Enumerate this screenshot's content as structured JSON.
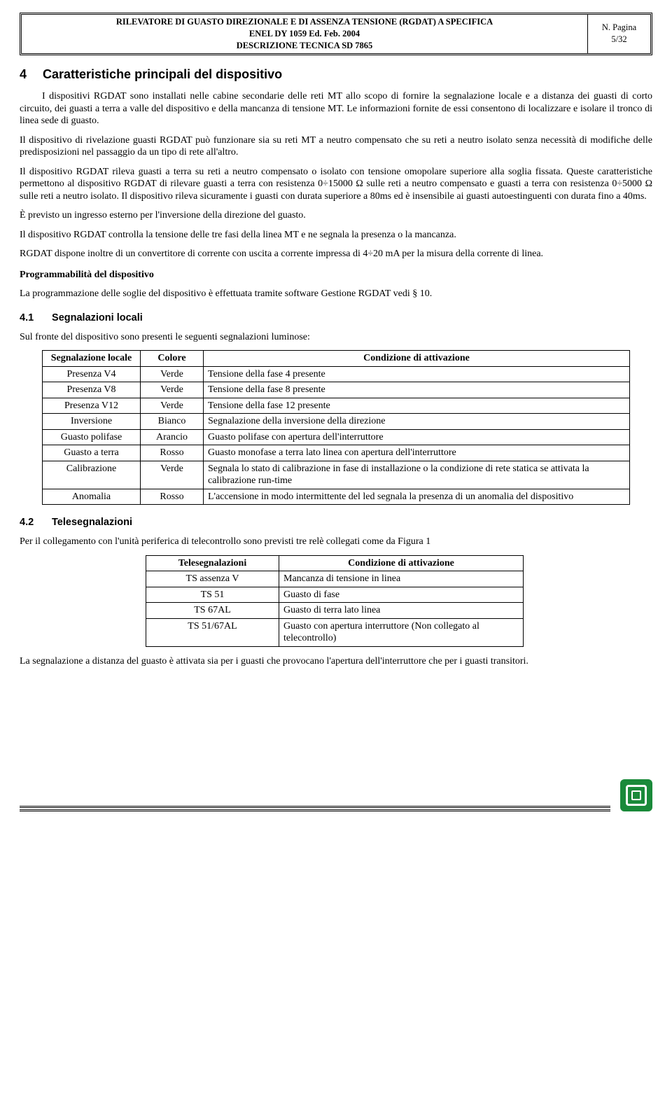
{
  "header": {
    "title_line1": "RILEVATORE DI GUASTO DIREZIONALE E DI ASSENZA TENSIONE (RGDAT) A SPECIFICA",
    "title_line2": "ENEL DY 1059 Ed. Feb. 2004",
    "title_line3": "DESCRIZIONE TECNICA SD 7865",
    "page_label": "N. Pagina",
    "page_num": "5/32"
  },
  "section": {
    "num": "4",
    "title": "Caratteristiche principali del dispositivo",
    "p1": "I dispositivi RGDAT sono installati nelle cabine secondarie delle reti MT allo scopo di fornire la segnalazione locale e a distanza dei guasti di corto circuito, dei guasti a terra a valle del dispositivo e della mancanza di tensione MT. Le informazioni fornite de essi consentono di localizzare e isolare il tronco di linea sede di guasto.",
    "p2": "Il dispositivo di rivelazione guasti RGDAT può funzionare sia su reti MT a neutro compensato che su reti a neutro isolato senza necessità di modifiche delle predisposizioni nel passaggio da un tipo di rete all'altro.",
    "p3": "Il dispositivo RGDAT rileva guasti a terra su reti a neutro compensato o isolato con tensione omopolare superiore alla soglia fissata. Queste caratteristiche permettono al dispositivo RGDAT di rilevare guasti a terra con resistenza 0÷15000 Ω sulle reti a neutro compensato e guasti a terra con resistenza 0÷5000 Ω sulle reti a neutro isolato. Il dispositivo rileva sicuramente i guasti con durata superiore a 80ms ed è insensibile ai guasti autoestinguenti con durata fino a 40ms.",
    "p4": "È previsto un ingresso esterno per l'inversione della direzione del guasto.",
    "p5": "Il dispositivo RGDAT controlla la tensione delle tre fasi della linea MT e ne segnala la presenza o la mancanza.",
    "p6": "RGDAT dispone inoltre di un convertitore di corrente con uscita a corrente impressa di 4÷20 mA per la misura della corrente di linea.",
    "subhead": "Programmabilità del dispositivo",
    "p7": "La programmazione delle soglie del dispositivo è effettuata tramite software Gestione RGDAT vedi § 10."
  },
  "sub41": {
    "num": "4.1",
    "title": "Segnalazioni locali",
    "intro": "Sul fronte del dispositivo sono presenti le seguenti segnalazioni luminose:",
    "cols": {
      "c1": "Segnalazione locale",
      "c2": "Colore",
      "c3": "Condizione di attivazione"
    },
    "rows": [
      {
        "c1": "Presenza V4",
        "c2": "Verde",
        "c3": "Tensione della fase 4 presente"
      },
      {
        "c1": "Presenza V8",
        "c2": "Verde",
        "c3": "Tensione della fase 8 presente"
      },
      {
        "c1": "Presenza V12",
        "c2": "Verde",
        "c3": "Tensione della fase 12 presente"
      },
      {
        "c1": "Inversione",
        "c2": "Bianco",
        "c3": "Segnalazione della inversione della direzione"
      },
      {
        "c1": "Guasto polifase",
        "c2": "Arancio",
        "c3": "Guasto polifase con apertura dell'interruttore"
      },
      {
        "c1": "Guasto a terra",
        "c2": "Rosso",
        "c3": "Guasto monofase a terra lato linea con apertura dell'interruttore"
      },
      {
        "c1": "Calibrazione",
        "c2": "Verde",
        "c3": "Segnala lo stato di calibrazione in fase di installazione o la condizione di rete statica se attivata la calibrazione run-time"
      },
      {
        "c1": "Anomalia",
        "c2": "Rosso",
        "c3": "L'accensione in modo intermittente del led segnala la presenza di un anomalia del dispositivo"
      }
    ]
  },
  "sub42": {
    "num": "4.2",
    "title": "Telesegnalazioni",
    "intro": "Per il collegamento con l'unità periferica di telecontrollo sono previsti tre relè collegati come da Figura 1",
    "cols": {
      "c1": "Telesegnalazioni",
      "c2": "Condizione di attivazione"
    },
    "rows": [
      {
        "c1": "TS assenza V",
        "c2": "Mancanza di tensione in linea"
      },
      {
        "c1": "TS 51",
        "c2": "Guasto di fase"
      },
      {
        "c1": "TS 67AL",
        "c2": "Guasto di terra lato linea"
      },
      {
        "c1": "TS 51/67AL",
        "c2": "Guasto con apertura interruttore (Non collegato al telecontrollo)"
      }
    ],
    "outro": "La segnalazione a distanza del guasto è attivata sia per i guasti che provocano l'apertura dell'interruttore che per i guasti transitori."
  }
}
